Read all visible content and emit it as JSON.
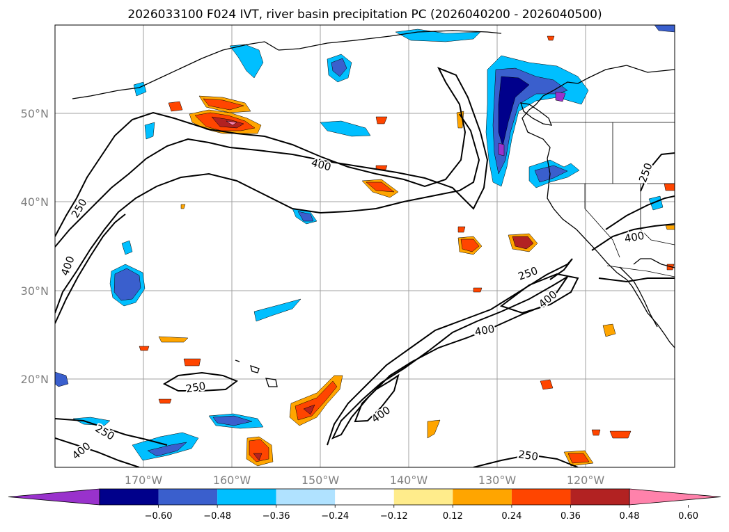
{
  "title": "2026033100 F024 IVT, river basin precipitation PC (2026040200 - 2026040500)",
  "map": {
    "lat_labels": [
      "50°N",
      "40°N",
      "30°N",
      "20°N"
    ],
    "lon_labels": [
      "170°W",
      "160°W",
      "150°W",
      "140°W",
      "130°W",
      "120°W"
    ],
    "lon_range": [
      -180,
      -110
    ],
    "lat_range": [
      10,
      60
    ]
  },
  "ivt_contour_labels": {
    "c250_a": "250",
    "c400_a": "400",
    "c400_b": "400",
    "c250_b": "250",
    "c400_c": "400",
    "c250_c": "250",
    "c400_d": "400",
    "c400_e": "400",
    "c250_d": "250",
    "c250_e": "250",
    "c400_f": "400",
    "c250_f": "250",
    "c400_g": "400"
  },
  "colorbar": {
    "ticks": [
      "−0.60",
      "−0.48",
      "−0.36",
      "−0.24",
      "−0.12",
      "0.12",
      "0.24",
      "0.36",
      "0.48",
      "0.60"
    ],
    "colors": [
      "#9932cc",
      "#00008b",
      "#3a5fcd",
      "#00bfff",
      "#b0e2ff",
      "#ffffff",
      "#ffec8b",
      "#ffa500",
      "#ff4500",
      "#b22222",
      "#ff82ab"
    ]
  },
  "palette": {
    "purple": "#9932cc",
    "navy": "#00008b",
    "royal": "#3a5fcd",
    "sky": "#00bfff",
    "pale": "#b0e2ff",
    "yellow": "#ffec8b",
    "orange": "#ffa500",
    "red": "#ff4500",
    "brick": "#b22222",
    "pink": "#ff82ab"
  }
}
